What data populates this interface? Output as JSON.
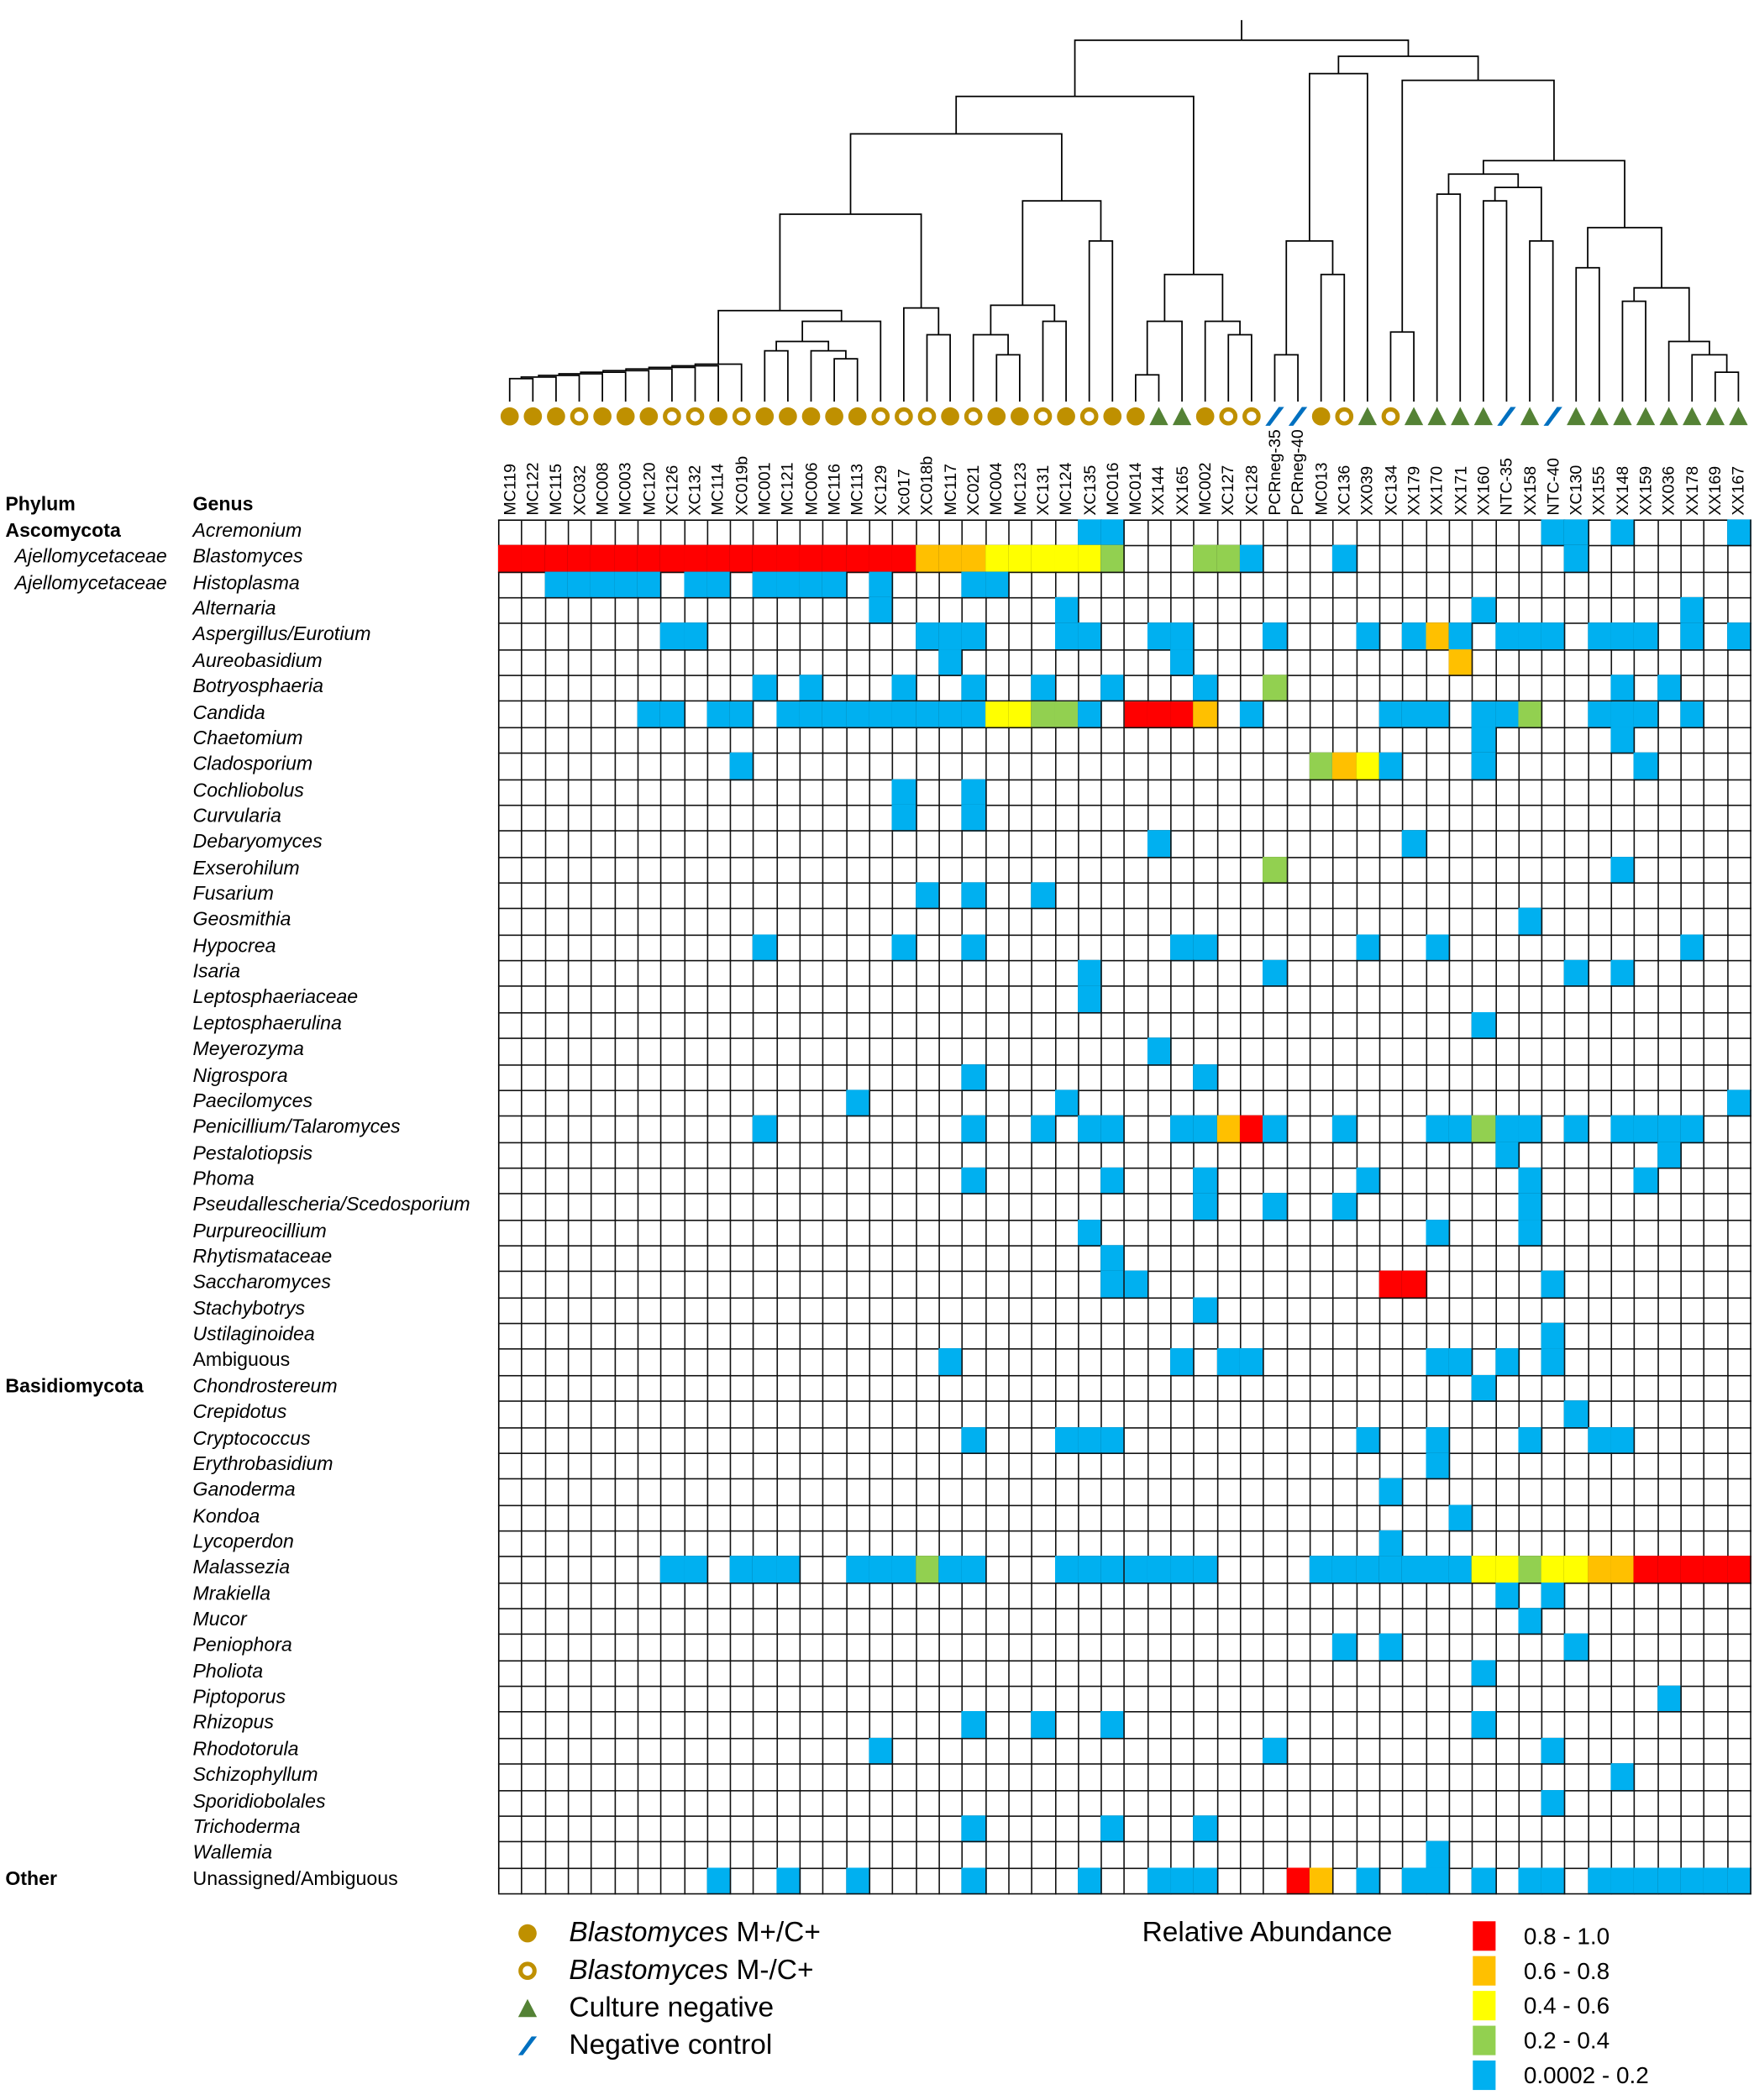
{
  "chart_data": {
    "type": "heatmap",
    "title": "",
    "headers": {
      "phylum": "Phylum",
      "genus": "Genus"
    },
    "columns": [
      {
        "id": "MC119",
        "group": "mp"
      },
      {
        "id": "MC122",
        "group": "mp"
      },
      {
        "id": "MC115",
        "group": "mp"
      },
      {
        "id": "XC032",
        "group": "mn"
      },
      {
        "id": "MC008",
        "group": "mp"
      },
      {
        "id": "MC003",
        "group": "mp"
      },
      {
        "id": "MC120",
        "group": "mp"
      },
      {
        "id": "XC126",
        "group": "mn"
      },
      {
        "id": "XC132",
        "group": "mn"
      },
      {
        "id": "MC114",
        "group": "mp"
      },
      {
        "id": "XC019b",
        "group": "mn"
      },
      {
        "id": "MC001",
        "group": "mp"
      },
      {
        "id": "MC121",
        "group": "mp"
      },
      {
        "id": "MC006",
        "group": "mp"
      },
      {
        "id": "MC116",
        "group": "mp"
      },
      {
        "id": "MC113",
        "group": "mp"
      },
      {
        "id": "XC129",
        "group": "mn"
      },
      {
        "id": "Xc017",
        "group": "mn"
      },
      {
        "id": "XC018b",
        "group": "mn"
      },
      {
        "id": "MC117",
        "group": "mp"
      },
      {
        "id": "XC021",
        "group": "mn"
      },
      {
        "id": "MC004",
        "group": "mp"
      },
      {
        "id": "MC123",
        "group": "mp"
      },
      {
        "id": "XC131",
        "group": "mn"
      },
      {
        "id": "MC124",
        "group": "mp"
      },
      {
        "id": "XC135",
        "group": "mn"
      },
      {
        "id": "MC016",
        "group": "mp"
      },
      {
        "id": "MC014",
        "group": "mp"
      },
      {
        "id": "XX144",
        "group": "cn"
      },
      {
        "id": "XX165",
        "group": "cn"
      },
      {
        "id": "MC002",
        "group": "mp"
      },
      {
        "id": "XC127",
        "group": "mn"
      },
      {
        "id": "XC128",
        "group": "mn"
      },
      {
        "id": "PCRneg-35",
        "group": "nc"
      },
      {
        "id": "PCRneg-40",
        "group": "nc"
      },
      {
        "id": "MC013",
        "group": "mp"
      },
      {
        "id": "XC136",
        "group": "mn"
      },
      {
        "id": "XX039",
        "group": "cn"
      },
      {
        "id": "XC134",
        "group": "mn"
      },
      {
        "id": "XX179",
        "group": "cn"
      },
      {
        "id": "XX170",
        "group": "cn"
      },
      {
        "id": "XX171",
        "group": "cn"
      },
      {
        "id": "XX160",
        "group": "cn"
      },
      {
        "id": "NTC-35",
        "group": "nc"
      },
      {
        "id": "XX158",
        "group": "cn"
      },
      {
        "id": "NTC-40",
        "group": "nc"
      },
      {
        "id": "XC130",
        "group": "cn"
      },
      {
        "id": "XX155",
        "group": "cn"
      },
      {
        "id": "XX148",
        "group": "cn"
      },
      {
        "id": "XX159",
        "group": "cn"
      },
      {
        "id": "XX036",
        "group": "cn"
      },
      {
        "id": "XX178",
        "group": "cn"
      },
      {
        "id": "XX169",
        "group": "cn"
      },
      {
        "id": "XX167",
        "group": "cn"
      }
    ],
    "rows": [
      {
        "phylum": "Ascomycota",
        "phylum_style": "bold",
        "genus": "Acremonium",
        "italic": true,
        "cells": {
          "b": [
            25,
            26,
            45,
            46,
            48,
            53
          ]
        }
      },
      {
        "phylum": "Ajellomycetaceae",
        "phylum_style": "ital",
        "genus": "Blastomyces",
        "italic": true,
        "cells": {
          "r": [
            0,
            1,
            2,
            3,
            4,
            5,
            6,
            7,
            8,
            9,
            10,
            11,
            12,
            13,
            14,
            15,
            16,
            17
          ],
          "o": [
            18,
            19,
            20
          ],
          "y": [
            21,
            22,
            23,
            24,
            25
          ],
          "g": [
            26,
            30,
            31
          ],
          "b": [
            32,
            36,
            46
          ]
        }
      },
      {
        "phylum": "Ajellomycetaceae",
        "phylum_style": "ital",
        "genus": "Histoplasma",
        "italic": true,
        "cells": {
          "b": [
            2,
            3,
            4,
            5,
            6,
            8,
            9,
            11,
            12,
            13,
            14,
            16,
            20,
            21
          ]
        }
      },
      {
        "genus": "Alternaria",
        "italic": true,
        "cells": {
          "b": [
            16,
            24,
            42,
            51
          ]
        }
      },
      {
        "genus": "Aspergillus/Eurotium",
        "italic": true,
        "cells": {
          "b": [
            7,
            8,
            18,
            19,
            20,
            24,
            25,
            28,
            29,
            33,
            37,
            39,
            41,
            43,
            44,
            45,
            47,
            48,
            49,
            51,
            53
          ],
          "o": [
            40
          ]
        }
      },
      {
        "genus": "Aureobasidium",
        "italic": true,
        "cells": {
          "b": [
            19,
            29
          ],
          "o": [
            41
          ]
        }
      },
      {
        "genus": "Botryosphaeria",
        "italic": true,
        "cells": {
          "b": [
            11,
            13,
            17,
            20,
            23,
            26,
            30,
            48,
            50
          ],
          "g": [
            33
          ]
        }
      },
      {
        "genus": "Candida",
        "italic": true,
        "cells": {
          "b": [
            6,
            7,
            9,
            10,
            12,
            13,
            14,
            15,
            16,
            17,
            18,
            19,
            20,
            25,
            32,
            38,
            39,
            40,
            42,
            43,
            47,
            48,
            49,
            51
          ],
          "y": [
            21,
            22
          ],
          "g": [
            23,
            24,
            44
          ],
          "r": [
            27,
            28,
            29
          ],
          "o": [
            30
          ]
        }
      },
      {
        "genus": "Chaetomium",
        "italic": true,
        "cells": {
          "b": [
            42,
            48
          ]
        }
      },
      {
        "genus": "Cladosporium",
        "italic": true,
        "cells": {
          "b": [
            10,
            38,
            42,
            49
          ],
          "g": [
            35
          ],
          "o": [
            36
          ],
          "y": [
            37
          ]
        }
      },
      {
        "genus": "Cochliobolus",
        "italic": true,
        "cells": {
          "b": [
            17,
            20
          ]
        }
      },
      {
        "genus": "Curvularia",
        "italic": true,
        "cells": {
          "b": [
            17,
            20
          ]
        }
      },
      {
        "genus": "Debaryomyces",
        "italic": true,
        "cells": {
          "b": [
            28,
            39
          ]
        }
      },
      {
        "genus": "Exserohilum",
        "italic": true,
        "cells": {
          "g": [
            33
          ],
          "b": [
            48
          ]
        }
      },
      {
        "genus": "Fusarium",
        "italic": true,
        "cells": {
          "b": [
            18,
            20,
            23
          ]
        }
      },
      {
        "genus": "Geosmithia",
        "italic": true,
        "cells": {
          "b": [
            44
          ]
        }
      },
      {
        "genus": "Hypocrea",
        "italic": true,
        "cells": {
          "b": [
            11,
            17,
            20,
            29,
            30,
            37,
            40,
            51
          ]
        }
      },
      {
        "genus": "Isaria",
        "italic": true,
        "cells": {
          "b": [
            25,
            33,
            46,
            48
          ]
        }
      },
      {
        "genus": "Leptosphaeriaceae",
        "italic": true,
        "cells": {
          "b": [
            25
          ]
        }
      },
      {
        "genus": "Leptosphaerulina",
        "italic": true,
        "cells": {
          "b": [
            42
          ]
        }
      },
      {
        "genus": "Meyerozyma",
        "italic": true,
        "cells": {
          "b": [
            28
          ]
        }
      },
      {
        "genus": "Nigrospora",
        "italic": true,
        "cells": {
          "b": [
            20,
            30
          ]
        }
      },
      {
        "genus": "Paecilomyces",
        "italic": true,
        "cells": {
          "b": [
            15,
            24,
            53
          ]
        }
      },
      {
        "genus": "Penicillium/Talaromyces",
        "italic": true,
        "cells": {
          "b": [
            11,
            20,
            23,
            25,
            26,
            29,
            30,
            33,
            36,
            40,
            41,
            43,
            44,
            46,
            48,
            49,
            50,
            51
          ],
          "o": [
            31
          ],
          "r": [
            32
          ],
          "g": [
            42
          ]
        }
      },
      {
        "genus": "Pestalotiopsis",
        "italic": true,
        "cells": {
          "b": [
            43,
            50
          ]
        }
      },
      {
        "genus": "Phoma",
        "italic": true,
        "cells": {
          "b": [
            20,
            26,
            30,
            37,
            44,
            49
          ]
        }
      },
      {
        "genus": "Pseudallescheria/Scedosporium",
        "italic": true,
        "cells": {
          "b": [
            30,
            33,
            36,
            44
          ]
        }
      },
      {
        "genus": "Purpureocillium",
        "italic": true,
        "cells": {
          "b": [
            25,
            40,
            44
          ]
        }
      },
      {
        "genus": "Rhytismataceae",
        "italic": true,
        "cells": {
          "b": [
            26
          ]
        }
      },
      {
        "genus": "Saccharomyces",
        "italic": true,
        "cells": {
          "b": [
            26,
            27,
            45
          ],
          "r": [
            38,
            39
          ]
        }
      },
      {
        "genus": "Stachybotrys",
        "italic": true,
        "cells": {
          "b": [
            30
          ]
        }
      },
      {
        "genus": "Ustilaginoidea",
        "italic": true,
        "cells": {
          "b": [
            45
          ]
        }
      },
      {
        "genus": "Ambiguous",
        "italic": false,
        "cells": {
          "b": [
            19,
            29,
            31,
            32,
            40,
            41,
            43,
            45
          ]
        }
      },
      {
        "phylum": "Basidiomycota",
        "phylum_style": "bold",
        "genus": "Chondrostereum",
        "italic": true,
        "cells": {
          "b": [
            42
          ]
        }
      },
      {
        "genus": "Crepidotus",
        "italic": true,
        "cells": {
          "b": [
            46
          ]
        }
      },
      {
        "genus": "Cryptococcus",
        "italic": true,
        "cells": {
          "b": [
            20,
            24,
            25,
            26,
            37,
            40,
            44,
            47,
            48
          ]
        }
      },
      {
        "genus": "Erythrobasidium",
        "italic": true,
        "cells": {
          "b": [
            40
          ]
        }
      },
      {
        "genus": "Ganoderma",
        "italic": true,
        "cells": {
          "b": [
            38
          ]
        }
      },
      {
        "genus": "Kondoa",
        "italic": true,
        "cells": {
          "b": [
            41
          ]
        }
      },
      {
        "genus": "Lycoperdon",
        "italic": true,
        "cells": {
          "b": [
            38
          ]
        }
      },
      {
        "genus": "Malassezia",
        "italic": true,
        "cells": {
          "b": [
            7,
            8,
            10,
            11,
            12,
            15,
            16,
            17,
            19,
            20,
            24,
            25,
            26,
            27,
            28,
            29,
            30,
            35,
            36,
            37,
            38,
            39,
            40,
            41
          ],
          "g": [
            18,
            44
          ],
          "y": [
            42,
            43,
            45,
            46
          ],
          "o": [
            47,
            48
          ],
          "r": [
            49,
            50,
            51,
            52,
            53
          ]
        }
      },
      {
        "genus": "Mrakiella",
        "italic": true,
        "cells": {
          "b": [
            43,
            45
          ]
        }
      },
      {
        "genus": "Mucor",
        "italic": true,
        "cells": {
          "b": [
            44
          ]
        }
      },
      {
        "genus": "Peniophora",
        "italic": true,
        "cells": {
          "b": [
            36,
            38,
            46
          ]
        }
      },
      {
        "genus": "Pholiota",
        "italic": true,
        "cells": {
          "b": [
            42
          ]
        }
      },
      {
        "genus": "Piptoporus",
        "italic": true,
        "cells": {
          "b": [
            50
          ]
        }
      },
      {
        "genus": "Rhizopus",
        "italic": true,
        "cells": {
          "b": [
            20,
            23,
            26,
            42
          ]
        }
      },
      {
        "genus": "Rhodotorula",
        "italic": true,
        "cells": {
          "b": [
            16,
            33,
            45
          ]
        }
      },
      {
        "genus": "Schizophyllum",
        "italic": true,
        "cells": {
          "b": [
            48
          ]
        }
      },
      {
        "genus": "Sporidiobolales",
        "italic": true,
        "cells": {
          "b": [
            45
          ]
        }
      },
      {
        "genus": "Trichoderma",
        "italic": true,
        "cells": {
          "b": [
            20,
            26,
            30
          ]
        }
      },
      {
        "genus": "Wallemia",
        "italic": true,
        "cells": {
          "b": [
            40
          ]
        }
      },
      {
        "phylum": "Other",
        "phylum_style": "bold",
        "genus": "Unassigned/Ambiguous",
        "italic": false,
        "cells": {
          "b": [
            9,
            12,
            15,
            20,
            25,
            28,
            29,
            30,
            37,
            39,
            40,
            42,
            44,
            45,
            47,
            48,
            49,
            50,
            51,
            52,
            53
          ],
          "r": [
            34
          ],
          "o": [
            35
          ]
        }
      }
    ],
    "levels": [
      {
        "code": "r",
        "label": "0.8 - 1.0",
        "color": "#FF0000"
      },
      {
        "code": "o",
        "label": "0.6 - 0.8",
        "color": "#FFC000"
      },
      {
        "code": "y",
        "label": "0.4 - 0.6",
        "color": "#FFFF00"
      },
      {
        "code": "g",
        "label": "0.2 - 0.4",
        "color": "#92D050"
      },
      {
        "code": "b",
        "label": "0.0002 - 0.2",
        "color": "#00B0F0"
      }
    ]
  },
  "legend": {
    "groups": [
      {
        "code": "mp",
        "italic": "Blastomyces",
        "rest": " M+/C+",
        "color": "#BF9000"
      },
      {
        "code": "mn",
        "italic": "Blastomyces",
        "rest": " M-/C+",
        "color": "#BF9000"
      },
      {
        "code": "cn",
        "italic": "",
        "rest": "Culture negative",
        "color": "#548235"
      },
      {
        "code": "nc",
        "italic": "",
        "rest": "Negative control",
        "color": "#0070C0"
      }
    ],
    "abundance_title": "Relative Abundance"
  }
}
